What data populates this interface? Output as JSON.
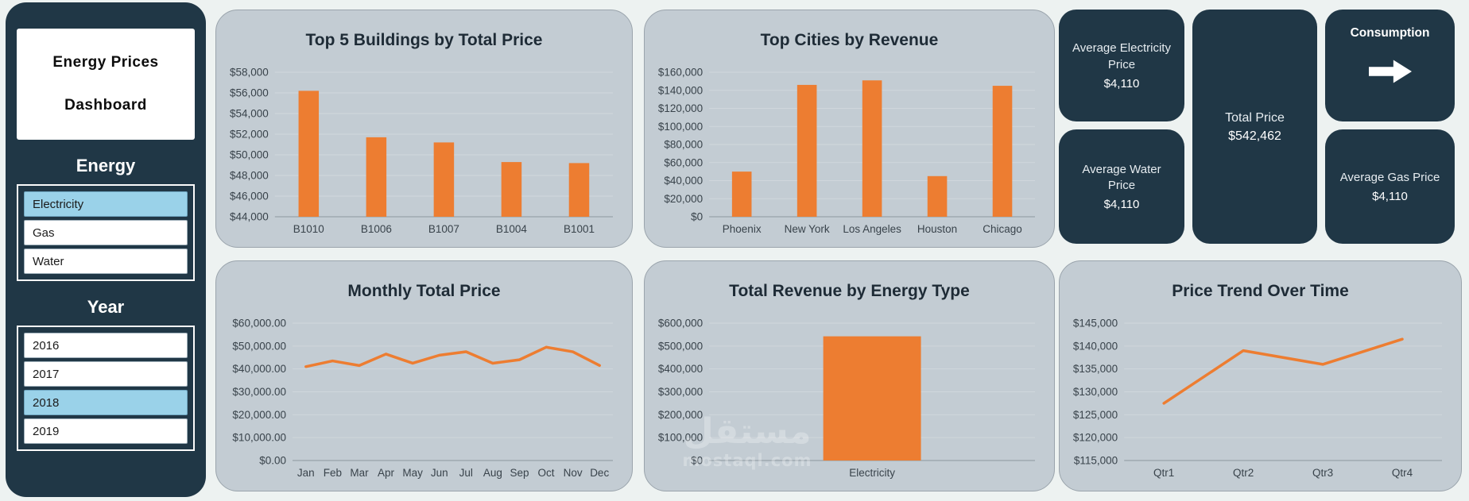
{
  "sidebar": {
    "title_line1": "Energy Prices",
    "title_line2": "Dashboard",
    "energy_header": "Energy",
    "energy_items": [
      {
        "label": "Electricity",
        "selected": true
      },
      {
        "label": "Gas",
        "selected": false
      },
      {
        "label": "Water",
        "selected": false
      }
    ],
    "year_header": "Year",
    "year_items": [
      {
        "label": "2016",
        "selected": false
      },
      {
        "label": "2017",
        "selected": false
      },
      {
        "label": "2018",
        "selected": true
      },
      {
        "label": "2019",
        "selected": false
      }
    ]
  },
  "kpis": {
    "avg_electricity": {
      "label": "Average Electricity Price",
      "value": "$4,110"
    },
    "total_price": {
      "label": "Total Price",
      "value": "$542,462"
    },
    "consumption": {
      "label": "Consumption"
    },
    "avg_water": {
      "label": "Average Water Price",
      "value": "$4,110"
    },
    "avg_gas": {
      "label": "Average Gas Price",
      "value": "$4,110"
    }
  },
  "colors": {
    "accent_orange": "#ED7D31",
    "dark_navy": "#203746",
    "panel_gray": "#C3CCD3",
    "selected_blue": "#9AD2E9"
  },
  "watermark": {
    "line1": "مستقل",
    "line2": "mostaql.com"
  },
  "chart_data": [
    {
      "id": "top_buildings",
      "type": "bar",
      "title": "Top 5 Buildings by Total Price",
      "categories": [
        "B1010",
        "B1006",
        "B1007",
        "B1004",
        "B1001"
      ],
      "values": [
        56200,
        51700,
        51200,
        49300,
        49200
      ],
      "ylim": [
        44000,
        58000
      ],
      "ytick_step": 2000,
      "ytick_format": "usd",
      "grid": true,
      "legend": "none"
    },
    {
      "id": "top_cities",
      "type": "bar",
      "title": "Top Cities by Revenue",
      "categories": [
        "Phoenix",
        "New York",
        "Los Angeles",
        "Houston",
        "Chicago"
      ],
      "values": [
        50000,
        146000,
        151000,
        45000,
        145000
      ],
      "ylim": [
        0,
        160000
      ],
      "ytick_step": 20000,
      "ytick_format": "usd",
      "grid": true,
      "legend": "none"
    },
    {
      "id": "monthly_total_price",
      "type": "line",
      "title": "Monthly Total Price",
      "categories": [
        "Jan",
        "Feb",
        "Mar",
        "Apr",
        "May",
        "Jun",
        "Jul",
        "Aug",
        "Sep",
        "Oct",
        "Nov",
        "Dec"
      ],
      "values": [
        41000,
        43500,
        41500,
        46500,
        42500,
        46000,
        47500,
        42500,
        44000,
        49500,
        47500,
        41500
      ],
      "ylim": [
        0,
        60000
      ],
      "ytick_step": 10000,
      "ytick_format": "usd2",
      "grid": true,
      "legend": "none"
    },
    {
      "id": "revenue_by_energy_type",
      "type": "bar",
      "title": "Total Revenue by Energy Type",
      "categories": [
        "Electricity"
      ],
      "values": [
        542462
      ],
      "ylim": [
        0,
        600000
      ],
      "ytick_step": 100000,
      "ytick_format": "usd",
      "grid": true,
      "legend": "none"
    },
    {
      "id": "price_trend",
      "type": "line",
      "title": "Price Trend Over Time",
      "categories": [
        "Qtr1",
        "Qtr2",
        "Qtr3",
        "Qtr4"
      ],
      "values": [
        127500,
        139000,
        136000,
        141500
      ],
      "ylim": [
        115000,
        145000
      ],
      "ytick_step": 5000,
      "ytick_format": "usd",
      "grid": true,
      "legend": "none"
    }
  ]
}
